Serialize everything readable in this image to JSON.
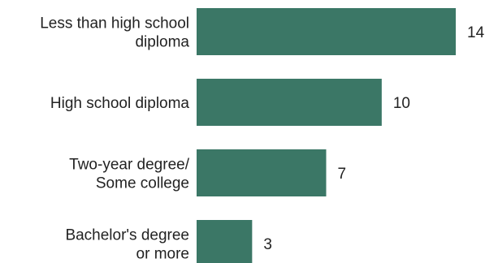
{
  "chart_data": {
    "type": "bar",
    "orientation": "horizontal",
    "categories": [
      [
        "Less than high school",
        "diploma"
      ],
      [
        "High school diploma"
      ],
      [
        "Two-year degree/",
        "Some college"
      ],
      [
        "Bachelor's degree",
        "or more"
      ]
    ],
    "values": [
      14,
      10,
      7,
      3
    ],
    "data_labels": [
      "14",
      "10",
      "7",
      "3"
    ],
    "xlim": [
      0,
      14
    ],
    "grid": false,
    "legend": "none",
    "bar_color": "#3b7766",
    "text_color": "#222222"
  }
}
